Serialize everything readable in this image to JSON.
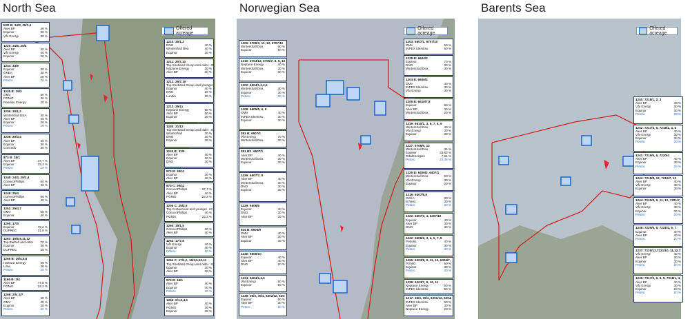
{
  "panels": [
    {
      "title": "North Sea",
      "legend": "Offered acreage"
    },
    {
      "title": "Norwegian Sea",
      "legend": "Offered acreage"
    },
    {
      "title": "Barents Sea",
      "legend": "Offered acreage"
    }
  ],
  "north_boxes": [
    {
      "t": "B32 B: 34/3, 25/1,4",
      "rows": [
        [
          "Aker BP",
          "40 %"
        ],
        [
          "Equinor",
          "30 %"
        ],
        [
          "Vår Energi",
          "30 %"
        ]
      ]
    },
    {
      "t": "1220: 34/6, 25/4",
      "rows": [
        [
          "Aker BP",
          "40 %"
        ],
        [
          "Vår Energi",
          "40 %"
        ],
        [
          "Equinor",
          "20 %"
        ]
      ]
    },
    {
      "t": "1234: 33/9",
      "rows": [
        [
          "Equinor",
          "30 %"
        ],
        [
          "OKEA",
          "30 %"
        ],
        [
          "Aker BP",
          "20 %"
        ],
        [
          "Petoro",
          "20 %"
        ]
      ]
    },
    {
      "t": "1235 B: 29/3",
      "rows": [
        [
          "OMV",
          "50 %"
        ],
        [
          "PGNiG",
          "30 %"
        ],
        [
          "Pandion Energy",
          "20 %"
        ]
      ]
    },
    {
      "t": "1236: 30/1,2",
      "rows": [
        [
          "Wintershall DEA",
          "40 %"
        ],
        [
          "Aker BP",
          "40 %"
        ],
        [
          "Equinor",
          "20 %"
        ],
        [
          "Petoro",
          "20 %"
        ]
      ]
    },
    {
      "t": "1238: 30/3,4",
      "rows": [
        [
          "Aker BP",
          "40 %"
        ],
        [
          "Equinor",
          "30 %"
        ],
        [
          "Concedo",
          "30 %"
        ]
      ]
    },
    {
      "t": "873 B: 25/1",
      "rows": [
        [
          "Aker BP",
          "47,7 %"
        ],
        [
          "Equinor",
          "33,3 %"
        ],
        [
          "Petoro",
          "19 %"
        ]
      ]
    },
    {
      "t": "1248: 24/3, 25/1,4",
      "rows": [
        [
          "ConocoPhillips",
          "60 %"
        ],
        [
          "Aker BP",
          "40 %"
        ]
      ]
    },
    {
      "t": "1249: 25/4",
      "rows": [
        [
          "ConocoPhillips",
          "60 %"
        ],
        [
          "Aker BP",
          "40 %"
        ]
      ]
    },
    {
      "t": "1251: 25/4,7",
      "rows": [
        [
          "OMV",
          "60 %"
        ],
        [
          "Equinor",
          "40 %"
        ]
      ]
    },
    {
      "t": "1265: 17/3",
      "rows": [
        [
          "Equinor",
          "78,2 %"
        ],
        [
          "DUPREC",
          "21,8 %"
        ]
      ]
    },
    {
      "t": "1263: 15/8,9,11,12",
      "rows": [
        [
          "Top Barbell and older",
          "70 %"
        ],
        [
          "Equinor",
          "30 %"
        ],
        [
          "DUPREC",
          "30 %"
        ]
      ]
    },
    {
      "t": "1265 B: 16/4,5,6",
      "rows": [
        [
          "Harbour Energy",
          "50 %"
        ],
        [
          "Lime",
          "30 %"
        ],
        [
          "Petoro",
          "20 %"
        ]
      ]
    },
    {
      "t": "1166 B: 2/4",
      "rows": [
        [
          "Aker BP",
          "77,8 %"
        ],
        [
          "PGNiG",
          "22,2 %"
        ]
      ]
    },
    {
      "t": "1268: 2/5, 2/7",
      "rows": [
        [
          "Aker BP",
          "40 %"
        ],
        [
          "OMV",
          "40 %"
        ],
        [
          "Equinor",
          "20 %"
        ],
        [
          "Petoro",
          "20 %"
        ]
      ]
    }
  ],
  "north_boxes_right": [
    {
      "t": "1210: 35/1,2",
      "rows": [
        [
          "DNO",
          "40 %"
        ],
        [
          "Wintershall Dea",
          "40 %"
        ],
        [
          "Equinor",
          "20 %"
        ]
      ]
    },
    {
      "t": "1211: 35/7,10",
      "rows": [
        [
          "Top Shetland Group and older",
          "40 %"
        ],
        [
          "Neptune Energy",
          "30 %"
        ],
        [
          "Aker BP",
          "30 %"
        ]
      ]
    },
    {
      "t": "1212: 35/7,10",
      "rows": [
        [
          "Top Shetland Group and younger",
          "40 %"
        ],
        [
          "Equinor",
          "40 %"
        ],
        [
          "DNO",
          "20 %"
        ],
        [
          "Lundin",
          "20 %"
        ]
      ]
    },
    {
      "t": "1213: 35/11",
      "rows": [
        [
          "Neptune Energy",
          "50 %"
        ],
        [
          "Aker BP",
          "50 %"
        ],
        [
          "Equinor",
          "30 %"
        ]
      ]
    },
    {
      "t": "1240: 31/12",
      "rows": [
        [
          "Top Shetland Group and older",
          "40 %"
        ],
        [
          "Wintershall",
          "30 %"
        ],
        [
          "DNO",
          "30 %"
        ],
        [
          "Equinor",
          "30 %"
        ]
      ]
    },
    {
      "t": "1243 B: 31/9",
      "rows": [
        [
          "Aker BP",
          "40 %"
        ],
        [
          "Equinor",
          "30 %"
        ],
        [
          "DNO",
          "30 %"
        ]
      ]
    },
    {
      "t": "873 B: 30/11",
      "rows": [
        [
          "Equinor",
          "30 %"
        ],
        [
          "Aker BP",
          "30 %"
        ]
      ]
    },
    {
      "t": "873 C: 30/11",
      "rows": [
        [
          "ConocoPhillips",
          "67,7 %"
        ],
        [
          "Aker BP",
          "40 %"
        ],
        [
          "PGNiG",
          "22,3 %"
        ]
      ]
    },
    {
      "t": "1206 C: 25/2,5",
      "rows": [
        [
          "Top Cretaceous and younger",
          "67,7 %"
        ],
        [
          "ConocoPhillips",
          "40 %"
        ],
        [
          "PGNiG",
          "22,3 %"
        ]
      ]
    },
    {
      "t": "1260: 15/1,5",
      "rows": [
        [
          "ConocoPhillips",
          "30 %"
        ],
        [
          "Aker BP",
          "40 %"
        ]
      ]
    },
    {
      "t": "1262: 17/7,8",
      "rows": [
        [
          "Vår Energi",
          "40 %"
        ],
        [
          "Equinor",
          "40 %"
        ],
        [
          "Petoro",
          "20 %"
        ]
      ]
    },
    {
      "t": "1264 C: 17/1,2, 16/3,5,10,11",
      "rows": [
        [
          "Top Shetland Group and older",
          "40 %"
        ],
        [
          "Equinor",
          "30 %"
        ],
        [
          "Aker BP",
          "30 %"
        ]
      ]
    },
    {
      "t": "973 B: 16/1",
      "rows": [
        [
          "Aker BP",
          "40 %"
        ],
        [
          "Equinor",
          "40 %"
        ],
        [
          "Petoro",
          "20 %"
        ]
      ]
    },
    {
      "t": "1266: 2/1,2,4,5",
      "rows": [
        [
          "Aker BP",
          "40 %"
        ],
        [
          "PGNiG",
          "30 %"
        ],
        [
          "Equinor",
          "30 %"
        ]
      ]
    }
  ],
  "norw_boxes_left": [
    {
      "t": "1206: 6708/3, 11, 12, 6707/10",
      "rows": [
        [
          "Wintershall Dea",
          "50 %"
        ],
        [
          "Equinor",
          "50 %"
        ]
      ]
    },
    {
      "t": "1210: 6704/12, 6705/7, 8, 9, 10, 11",
      "rows": [
        [
          "Neptune Energy",
          "40 %"
        ],
        [
          "Wintershall Dea",
          "30 %"
        ],
        [
          "Equinor",
          "30 %"
        ]
      ]
    },
    {
      "t": "1202: 6604/1,2,3,6",
      "rows": [
        [
          "Wintershall Dea",
          "40 %"
        ],
        [
          "Equinor",
          "30 %"
        ],
        [
          "Petoro",
          "30 %"
        ]
      ]
    },
    {
      "t": "1208: 6605/5, 6, 9",
      "rows": [
        [
          "OMV",
          "40 %"
        ],
        [
          "INPEX Idemitsu",
          "30 %"
        ],
        [
          "Equinor",
          "30 %"
        ]
      ]
    },
    {
      "t": "281 B: 6507/1",
      "rows": [
        [
          "Vår Energi",
          "70 %"
        ],
        [
          "Wintershall Dea",
          "30 %"
        ]
      ]
    },
    {
      "t": "281 BS: 6507/1",
      "rows": [
        [
          "Aker BP",
          "40 %"
        ],
        [
          "Wintershall Dea",
          "30 %"
        ],
        [
          "Equinor",
          "30 %"
        ]
      ]
    },
    {
      "t": "1226: 6507/7, 8",
      "rows": [
        [
          "Aker BP",
          "40 %"
        ],
        [
          "Wintershall Dea",
          "30 %"
        ],
        [
          "DNO",
          "30 %"
        ],
        [
          "Equinor",
          "30 %"
        ]
      ]
    },
    {
      "t": "1229: 6506/6",
      "rows": [
        [
          "Equinor",
          "40 %"
        ],
        [
          "DNO",
          "30 %"
        ],
        [
          "Aker BP",
          "30 %"
        ]
      ]
    },
    {
      "t": "644 B: 6506/9",
      "rows": [
        [
          "OMV",
          "40 %"
        ],
        [
          "Aker BP",
          "30 %"
        ],
        [
          "Equinor",
          "30 %"
        ]
      ]
    },
    {
      "t": "1230: 6506/10",
      "rows": [
        [
          "Equinor",
          "40 %"
        ],
        [
          "Aker BP",
          "40 %"
        ],
        [
          "DNO",
          "20 %"
        ]
      ]
    },
    {
      "t": "1234: 6404/1,4,5",
      "rows": [
        [
          "Vår Energi",
          "50 %"
        ],
        [
          "Equinor",
          "50 %"
        ]
      ]
    },
    {
      "t": "1238: 36/3, 35/1, 6203/12, 6201/10",
      "rows": [
        [
          "Equinor",
          "50 %"
        ],
        [
          "Aker BP",
          "30 %"
        ],
        [
          "Petoro",
          "20 %"
        ]
      ]
    }
  ],
  "norw_boxes_right": [
    {
      "t": "1203: 6607/1, 6707/10",
      "rows": [
        [
          "OMV",
          "50 %"
        ],
        [
          "INPEX Idemitsu",
          "50 %"
        ]
      ]
    },
    {
      "t": "1228 B: 6604/3",
      "rows": [
        [
          "Equinor",
          "70 %"
        ],
        [
          "DNO",
          "30 %"
        ],
        [
          "Wintershall Dea",
          "30 %"
        ]
      ]
    },
    {
      "t": "1204 B: 6606/3",
      "rows": [
        [
          "OMV",
          "40 %"
        ],
        [
          "INPEX Idemitsu",
          "30 %"
        ],
        [
          "Vår Energi",
          "30 %"
        ]
      ]
    },
    {
      "t": "1206 B: 6610/7,8",
      "rows": [
        [
          "Equinor",
          "50 %"
        ],
        [
          "Aker BP",
          "30 %"
        ],
        [
          "Wintershall Dea",
          "20 %"
        ]
      ]
    },
    {
      "t": "1219: 6610/1, 3, 6, 7, 8, 9",
      "rows": [
        [
          "Wintershall Dea",
          "40 %"
        ],
        [
          "Vår Energi",
          "30 %"
        ],
        [
          "Equinor",
          "30 %"
        ]
      ]
    },
    {
      "t": "1227: 6706/6, 12",
      "rows": [
        [
          "Wintershall Dea",
          "35 %"
        ],
        [
          "Equinor",
          "33,83 %"
        ],
        [
          "TotalEnergies",
          "7,81 %"
        ],
        [
          "Petoro",
          "22,36 %"
        ]
      ]
    },
    {
      "t": "1225 B: 6406/2, 6407/1",
      "rows": [
        [
          "Wintershall Dea",
          "50 %"
        ],
        [
          "Vår Energi",
          "30 %"
        ],
        [
          "Equinor",
          "20 %"
        ]
      ]
    },
    {
      "t": "1216: 6407/8,9",
      "rows": [
        [
          "OKEA",
          "60 %"
        ],
        [
          "M Vest",
          "20 %"
        ],
        [
          "Petoro",
          "20 %"
        ]
      ]
    },
    {
      "t": "1222: 6507/3, 4, 6407/10",
      "rows": [
        [
          "Equinor",
          "40 %"
        ],
        [
          "Aker BP",
          "30 %"
        ],
        [
          "DNO",
          "30 %"
        ]
      ]
    },
    {
      "t": "1222: 6506/2, 3, 4, 5, 7, 8",
      "rows": [
        [
          "Petrolia",
          "40 %"
        ],
        [
          "Equinor",
          "30 %"
        ],
        [
          "Petoro",
          "30 %"
        ]
      ]
    },
    {
      "t": "1226: 6303/8, 9, 11, 12, 6306/7, 8",
      "rows": [
        [
          "PGNiG",
          "50 %"
        ],
        [
          "Equinor",
          "30 %"
        ],
        [
          "Petoro",
          "20 %"
        ]
      ]
    },
    {
      "t": "1239: 6203/7, 8, 10, 11",
      "rows": [
        [
          "Neptune Energy",
          "50 %"
        ],
        [
          "INPEX Idemitsu",
          "50 %"
        ]
      ]
    },
    {
      "t": "1217: 35/3, 36/1, 6201/12, 6204/10",
      "rows": [
        [
          "INPEX Idemitsu",
          "50 %"
        ],
        [
          "Aker BP",
          "30 %"
        ],
        [
          "Neptune Energy",
          "20 %"
        ]
      ]
    }
  ],
  "barents_boxes": [
    {
      "t": "1240: 7218/1, 2, 3",
      "rows": [
        [
          "Aker BP",
          "40 %"
        ],
        [
          "Vår Energi",
          "30 %"
        ],
        [
          "Equinor",
          "30 %"
        ],
        [
          "Petoro",
          "20 %"
        ]
      ]
    },
    {
      "t": "1242: 7217/3, 6, 7218/1, 4, 5",
      "rows": [
        [
          "Aker BP",
          "40 %"
        ],
        [
          "Vår Energi",
          "30 %"
        ],
        [
          "Equinor",
          "30 %"
        ],
        [
          "Petoro",
          "20 %"
        ]
      ]
    },
    {
      "t": "1241: 7219/5, 6, 7220/4",
      "rows": [
        [
          "Aker BP",
          "40 %"
        ],
        [
          "Equinor",
          "30 %"
        ],
        [
          "Petoro",
          "20 %"
        ]
      ]
    },
    {
      "t": "1243: 7218/8, 12, 7219/7, 10",
      "rows": [
        [
          "Aker BP",
          "40 %"
        ],
        [
          "Vår Energi",
          "30 %"
        ],
        [
          "Equinor",
          "30 %"
        ]
      ]
    },
    {
      "t": "1244: 7220/8, 9, 11, 12, 7221/7, 10",
      "rows": [
        [
          "Aker BP",
          "40 %"
        ],
        [
          "Vår Energi",
          "30 %"
        ],
        [
          "Equinor",
          "30 %"
        ],
        [
          "Petoro",
          "20 %"
        ]
      ]
    },
    {
      "t": "1246: 7220/5, 6, 7221/4, 5, 7",
      "rows": [
        [
          "Equinor",
          "40 %"
        ],
        [
          "Aker BP",
          "40 %"
        ],
        [
          "Petoro",
          "20 %"
        ]
      ]
    },
    {
      "t": "1237: 7120/12,7121/10, 11,12,7122/10",
      "rows": [
        [
          "Vår Energi",
          "40 %"
        ],
        [
          "Aker BP",
          "30 %"
        ],
        [
          "Equinor",
          "30 %"
        ],
        [
          "Petoro",
          "20 %"
        ]
      ]
    },
    {
      "t": "1236: 7017/3, 6, 8, 9, 7018/1, 4, 5, 7",
      "rows": [
        [
          "Aker BP",
          "40 %"
        ],
        [
          "Vår Energi",
          "30 %"
        ],
        [
          "Equinor",
          "20 %"
        ],
        [
          "Petoro",
          "20 %"
        ]
      ]
    }
  ]
}
